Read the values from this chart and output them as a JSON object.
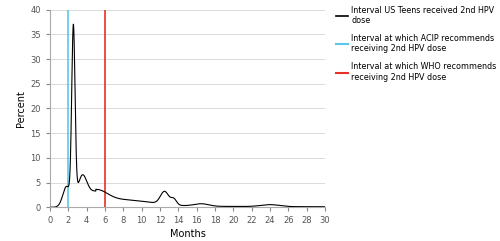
{
  "xlabel": "Months",
  "ylabel": "Percent",
  "xlim": [
    0,
    30
  ],
  "ylim": [
    0,
    40
  ],
  "yticks": [
    0,
    5,
    10,
    15,
    20,
    25,
    30,
    35,
    40
  ],
  "xticks": [
    0,
    2,
    4,
    6,
    8,
    10,
    12,
    14,
    16,
    18,
    20,
    22,
    24,
    26,
    28,
    30
  ],
  "acip_line_x": 2,
  "who_line_x": 6,
  "acip_color": "#5BC8E8",
  "who_color": "#E8302A",
  "curve_color": "#000000",
  "background_color": "#FFFFFF",
  "grid_color": "#CCCCCC",
  "legend_entries": [
    "Interval US Teens received 2nd HPV\ndose",
    "Interval at which ACIP recommends\nreceiving 2nd HPV dose",
    "Interval at which WHO recommends\nreceiving 2nd HPV dose"
  ],
  "legend_colors": [
    "#000000",
    "#5BC8E8",
    "#E8302A"
  ]
}
